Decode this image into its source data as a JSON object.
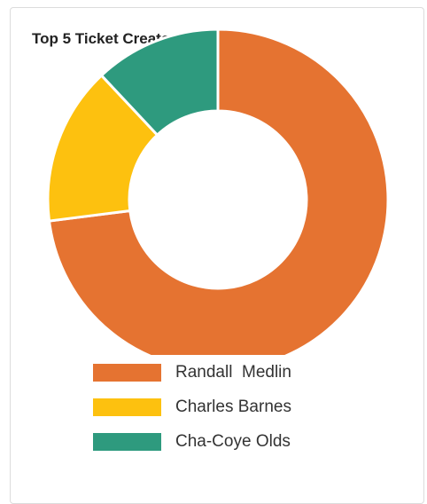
{
  "chart_data": {
    "type": "pie",
    "title": "Top 5 Ticket Creators",
    "donut": true,
    "categories": [
      "Randall  Medlin",
      "Charles Barnes",
      "Cha-Coye Olds"
    ],
    "values": [
      73,
      15,
      12
    ],
    "colors": [
      "#E57331",
      "#FDC10F",
      "#2E9A7E"
    ],
    "legend_position": "bottom"
  }
}
